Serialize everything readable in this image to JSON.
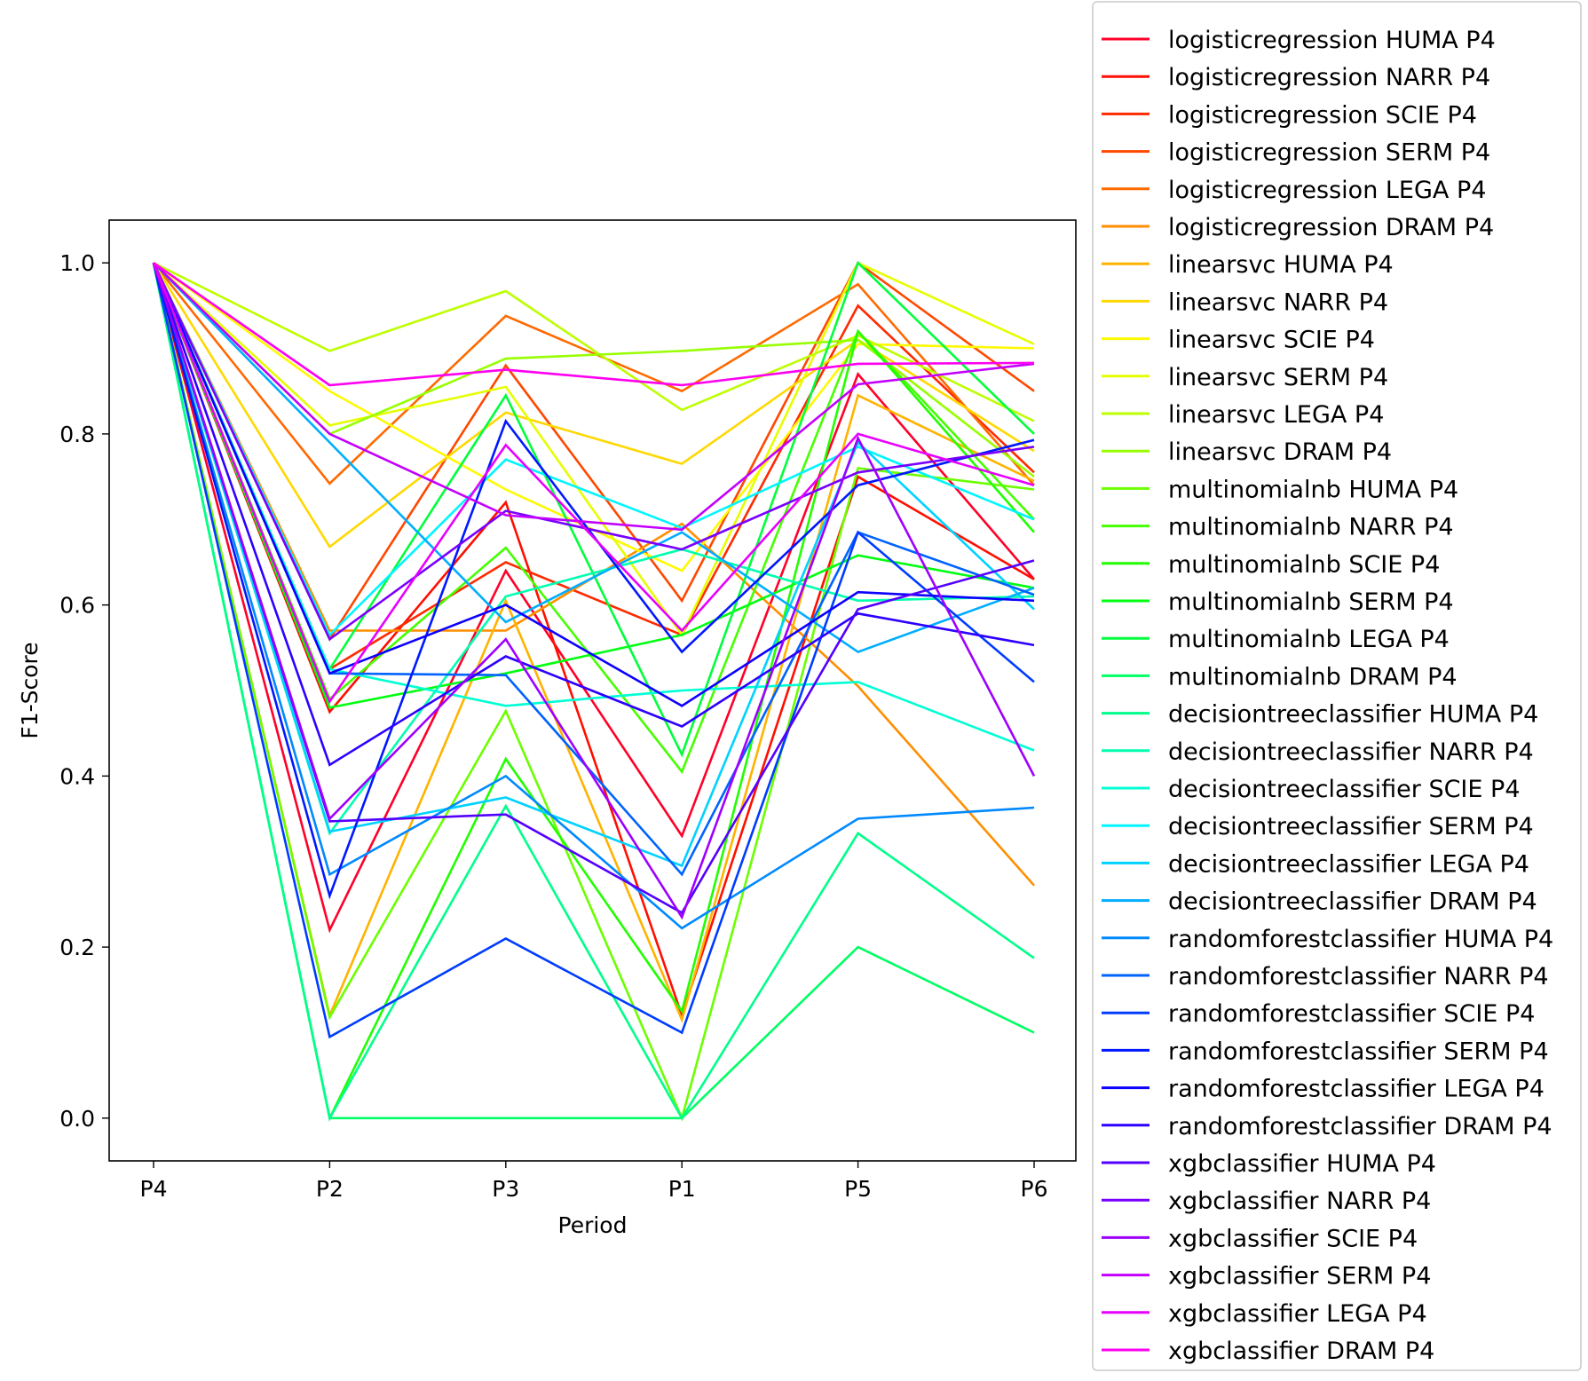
{
  "chart_data": {
    "type": "line",
    "title": "",
    "xlabel": "Period",
    "ylabel": "F1-Score",
    "categories": [
      "P4",
      "P2",
      "P3",
      "P1",
      "P5",
      "P6"
    ],
    "ylim": [
      -0.05,
      1.05
    ],
    "yticks": [
      0.0,
      0.2,
      0.4,
      0.6,
      0.8,
      1.0
    ],
    "ytick_labels": [
      "0.0",
      "0.2",
      "0.4",
      "0.6",
      "0.8",
      "1.0"
    ],
    "grid": false,
    "legend_position": "outside-right",
    "series": [
      {
        "name": "logisticregression HUMA P4",
        "color": "#ff0029",
        "values": [
          1.0,
          0.22,
          0.64,
          0.33,
          0.87,
          0.63
        ]
      },
      {
        "name": "logisticregression NARR P4",
        "color": "#ff0f00",
        "values": [
          1.0,
          0.475,
          0.72,
          0.12,
          0.75,
          0.63
        ]
      },
      {
        "name": "logisticregression SCIE P4",
        "color": "#ff2a00",
        "values": [
          1.0,
          0.525,
          0.65,
          0.565,
          0.95,
          0.755
        ]
      },
      {
        "name": "logisticregression SERM P4",
        "color": "#ff4800",
        "values": [
          1.0,
          0.56,
          0.88,
          0.605,
          1.0,
          0.85
        ]
      },
      {
        "name": "logisticregression LEGA P4",
        "color": "#ff6900",
        "values": [
          1.0,
          0.742,
          0.938,
          0.85,
          0.975,
          0.74
        ]
      },
      {
        "name": "logisticregression DRAM P4",
        "color": "#ff8e00",
        "values": [
          1.0,
          0.57,
          0.57,
          0.695,
          0.505,
          0.272
        ]
      },
      {
        "name": "linearsvc HUMA P4",
        "color": "#ffb300",
        "values": [
          1.0,
          0.12,
          0.605,
          0.115,
          0.845,
          0.745
        ]
      },
      {
        "name": "linearsvc NARR P4",
        "color": "#ffd800",
        "values": [
          1.0,
          0.668,
          0.825,
          0.765,
          0.91,
          0.78
        ]
      },
      {
        "name": "linearsvc SCIE P4",
        "color": "#fff900",
        "values": [
          1.0,
          0.85,
          0.735,
          0.64,
          0.905,
          0.9
        ]
      },
      {
        "name": "linearsvc SERM P4",
        "color": "#e5ff00",
        "values": [
          1.0,
          0.81,
          0.855,
          0.565,
          1.0,
          0.905
        ]
      },
      {
        "name": "linearsvc LEGA P4",
        "color": "#bdff00",
        "values": [
          1.0,
          0.897,
          0.967,
          0.828,
          0.915,
          0.815
        ]
      },
      {
        "name": "linearsvc DRAM P4",
        "color": "#97ff00",
        "values": [
          1.0,
          0.8,
          0.888,
          0.897,
          0.91,
          0.75
        ]
      },
      {
        "name": "multinomialnb HUMA P4",
        "color": "#6bff00",
        "values": [
          1.0,
          0.118,
          0.476,
          0.0,
          0.76,
          0.735
        ]
      },
      {
        "name": "multinomialnb NARR P4",
        "color": "#46ff00",
        "values": [
          1.0,
          0.49,
          0.667,
          0.405,
          0.92,
          0.7
        ]
      },
      {
        "name": "multinomialnb SCIE P4",
        "color": "#21ff00",
        "values": [
          1.0,
          0.0,
          0.42,
          0.125,
          0.92,
          0.685
        ]
      },
      {
        "name": "multinomialnb SERM P4",
        "color": "#00ff10",
        "values": [
          1.0,
          0.48,
          0.52,
          0.565,
          0.658,
          0.62
        ]
      },
      {
        "name": "multinomialnb LEGA P4",
        "color": "#00ff3b",
        "values": [
          1.0,
          0.525,
          0.845,
          0.425,
          1.0,
          0.8
        ]
      },
      {
        "name": "multinomialnb DRAM P4",
        "color": "#00ff64",
        "values": [
          1.0,
          0.0,
          0.0,
          0.0,
          0.2,
          0.1
        ]
      },
      {
        "name": "decisiontreeclassifier HUMA P4",
        "color": "#00ff8a",
        "values": [
          1.0,
          0.0,
          0.365,
          0.0,
          0.333,
          0.187
        ]
      },
      {
        "name": "decisiontreeclassifier NARR P4",
        "color": "#00ffb0",
        "values": [
          1.0,
          0.333,
          0.61,
          0.665,
          0.605,
          0.61
        ]
      },
      {
        "name": "decisiontreeclassifier SCIE P4",
        "color": "#00ffd4",
        "values": [
          1.0,
          0.525,
          0.482,
          0.5,
          0.51,
          0.43
        ]
      },
      {
        "name": "decisiontreeclassifier SERM P4",
        "color": "#00f5ff",
        "values": [
          1.0,
          0.565,
          0.77,
          0.69,
          0.785,
          0.7
        ]
      },
      {
        "name": "decisiontreeclassifier LEGA P4",
        "color": "#00d2ff",
        "values": [
          1.0,
          0.335,
          0.375,
          0.295,
          0.79,
          0.595
        ]
      },
      {
        "name": "decisiontreeclassifier DRAM P4",
        "color": "#00adff",
        "values": [
          1.0,
          0.79,
          0.58,
          0.685,
          0.545,
          0.62
        ]
      },
      {
        "name": "randomforestclassifier HUMA P4",
        "color": "#0089ff",
        "values": [
          1.0,
          0.285,
          0.4,
          0.222,
          0.35,
          0.363
        ]
      },
      {
        "name": "randomforestclassifier NARR P4",
        "color": "#0063ff",
        "values": [
          1.0,
          0.52,
          0.518,
          0.285,
          0.685,
          0.612
        ]
      },
      {
        "name": "randomforestclassifier SCIE P4",
        "color": "#003cff",
        "values": [
          1.0,
          0.095,
          0.21,
          0.1,
          0.685,
          0.51
        ]
      },
      {
        "name": "randomforestclassifier SERM P4",
        "color": "#0018ff",
        "values": [
          1.0,
          0.26,
          0.815,
          0.545,
          0.74,
          0.793
        ]
      },
      {
        "name": "randomforestclassifier LEGA P4",
        "color": "#0d00ff",
        "values": [
          1.0,
          0.52,
          0.6,
          0.482,
          0.615,
          0.605
        ]
      },
      {
        "name": "randomforestclassifier DRAM P4",
        "color": "#2e00ff",
        "values": [
          1.0,
          0.413,
          0.54,
          0.458,
          0.59,
          0.553
        ]
      },
      {
        "name": "xgbclassifier HUMA P4",
        "color": "#5400ff",
        "values": [
          1.0,
          0.347,
          0.355,
          0.24,
          0.595,
          0.652
        ]
      },
      {
        "name": "xgbclassifier NARR P4",
        "color": "#7900ff",
        "values": [
          1.0,
          0.56,
          0.71,
          0.665,
          0.755,
          0.785
        ]
      },
      {
        "name": "xgbclassifier SCIE P4",
        "color": "#9e00ff",
        "values": [
          1.0,
          0.35,
          0.56,
          0.235,
          0.795,
          0.4
        ]
      },
      {
        "name": "xgbclassifier SERM P4",
        "color": "#c300ff",
        "values": [
          1.0,
          0.8,
          0.705,
          0.688,
          0.858,
          0.882
        ]
      },
      {
        "name": "xgbclassifier LEGA P4",
        "color": "#e800ff",
        "values": [
          1.0,
          0.487,
          0.787,
          0.57,
          0.8,
          0.74
        ]
      },
      {
        "name": "xgbclassifier DRAM P4",
        "color": "#ff00f0",
        "values": [
          1.0,
          0.857,
          0.875,
          0.857,
          0.882,
          0.883
        ]
      }
    ]
  }
}
